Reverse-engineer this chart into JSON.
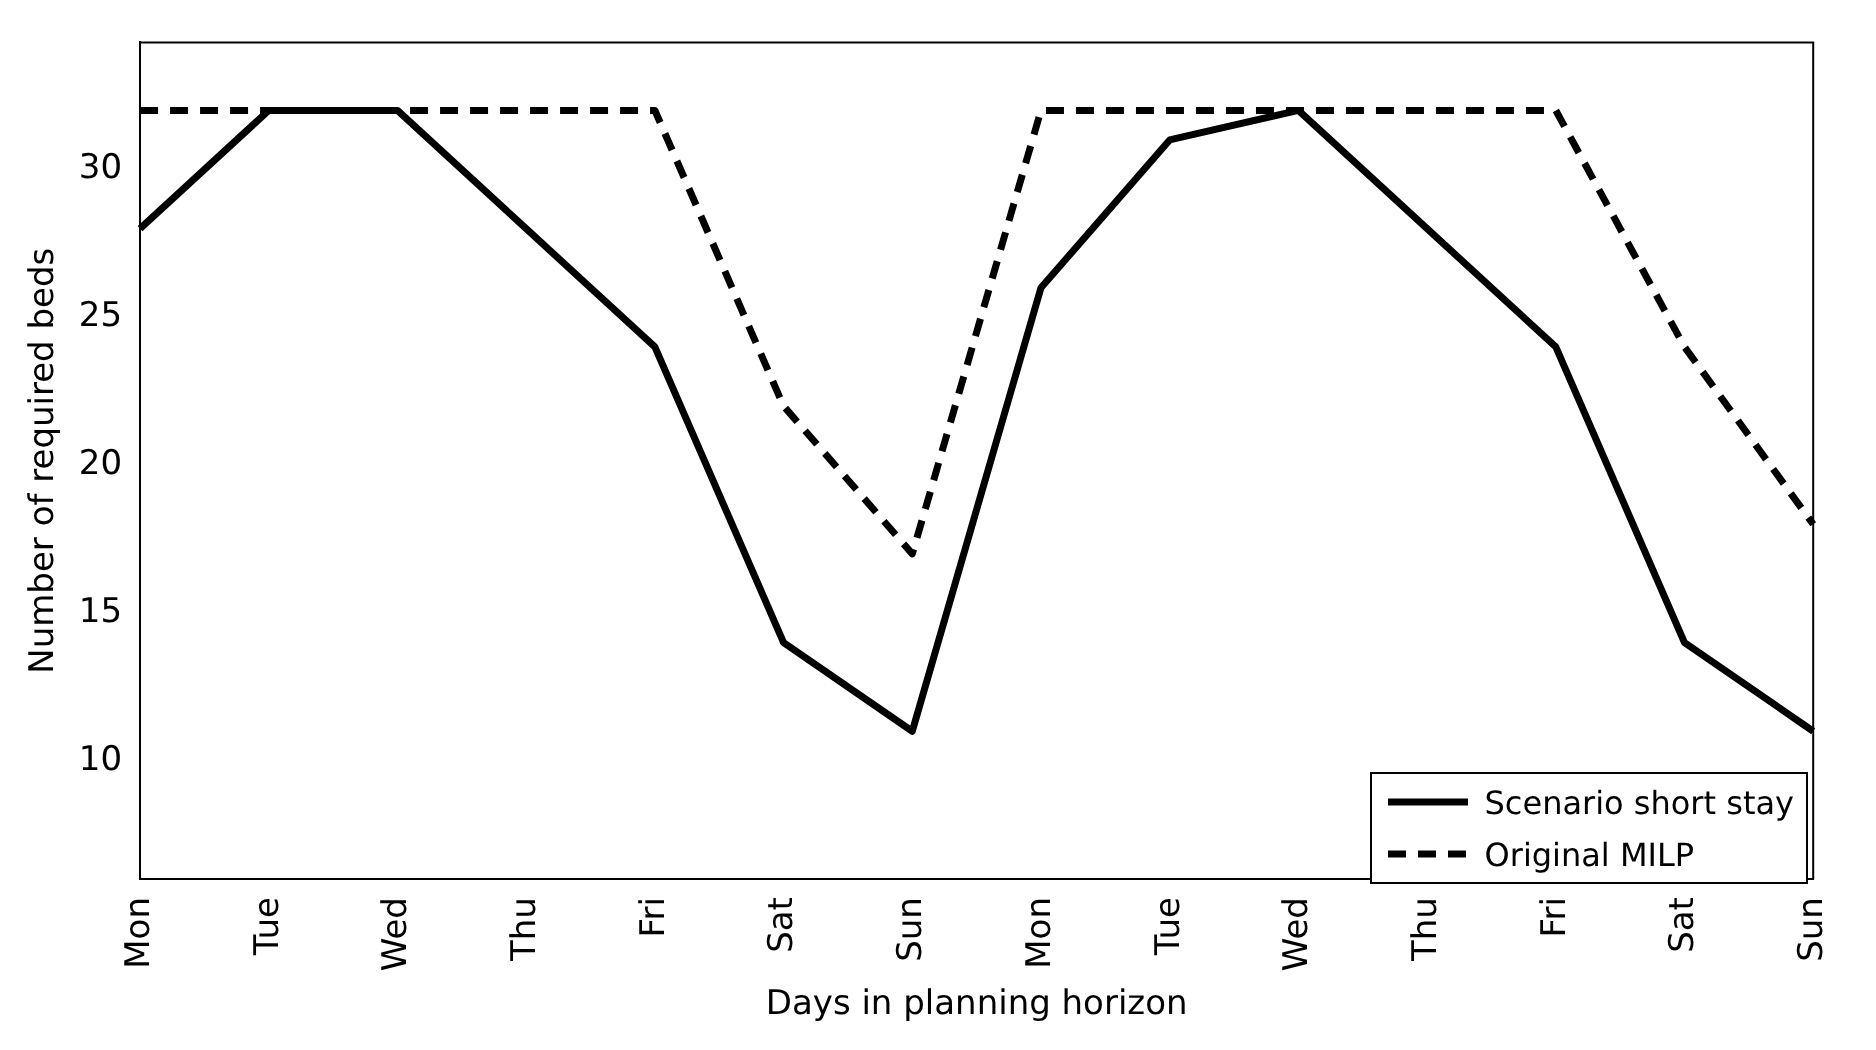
{
  "chart_data": {
    "type": "line",
    "xlabel": "Days in planning horizon",
    "ylabel": "Number of required beds",
    "categories": [
      "Mon",
      "Tue",
      "Wed",
      "Thu",
      "Fri",
      "Sat",
      "Sun",
      "Mon",
      "Tue",
      "Wed",
      "Thu",
      "Fri",
      "Sat",
      "Sun"
    ],
    "series": [
      {
        "name": "Scenario short stay",
        "color": "#000000",
        "line_style": "solid",
        "values": [
          28,
          32,
          32,
          28,
          24,
          14,
          11,
          26,
          31,
          32,
          28,
          24,
          14,
          11
        ]
      },
      {
        "name": "Original MILP",
        "color": "#000000",
        "line_style": "dashed",
        "values": [
          32,
          32,
          32,
          32,
          32,
          22,
          17,
          32,
          32,
          32,
          32,
          32,
          24,
          18
        ]
      }
    ],
    "ylim": [
      6,
      34.3
    ],
    "yticks": [
      10,
      15,
      20,
      25,
      30
    ],
    "grid": false,
    "legend": "bottom right",
    "marker": "none"
  }
}
